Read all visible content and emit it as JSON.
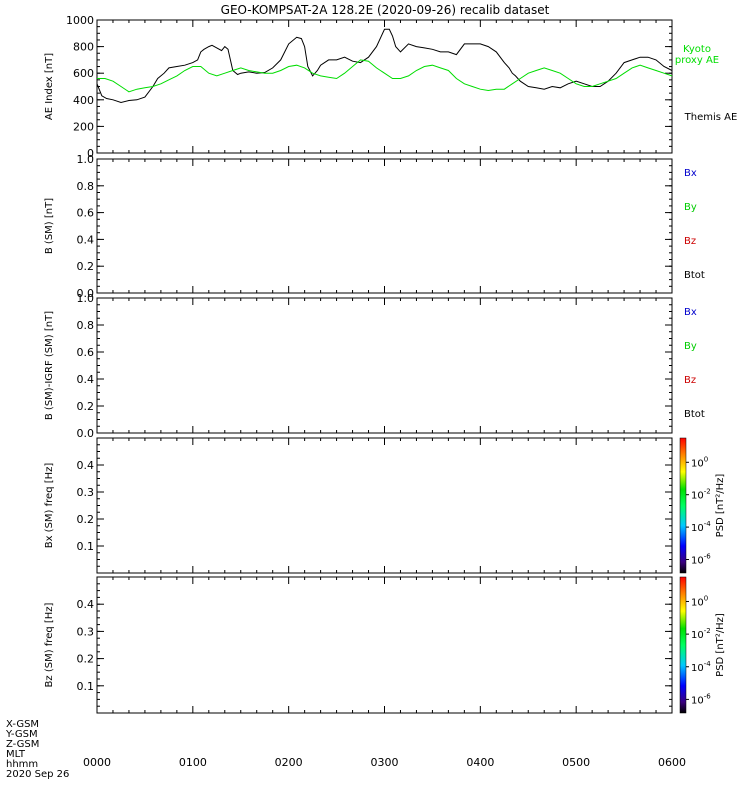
{
  "title": "GEO-KOMPSAT-2A 128.2E (2020-09-26) recalib dataset",
  "x_axis": {
    "tick_labels": [
      "0000",
      "0100",
      "0200",
      "0300",
      "0400",
      "0500",
      "0600"
    ],
    "row_labels": [
      "X-GSM",
      "Y-GSM",
      "Z-GSM",
      "MLT",
      "hhmm",
      "2020 Sep 26"
    ]
  },
  "colorbar_labels": [
    "10^0",
    "10^-2",
    "10^-4",
    "10^-6"
  ],
  "colorbar_title": "PSD [nT^2/Hz]",
  "chart_data": [
    {
      "type": "line",
      "ylabel": "AE Index [nT]",
      "ylim": [
        0,
        1000
      ],
      "yticks": [
        "0",
        "200",
        "400",
        "600",
        "800",
        "1000"
      ],
      "xlim": [
        0,
        360
      ],
      "x_unit": "minutes since 0000 UT",
      "legend": [
        {
          "label_lines": [
            "Kyoto",
            "proxy AE"
          ],
          "color": "#00dd00"
        },
        {
          "label_lines": [
            "Themis AE"
          ],
          "color": "#000000"
        }
      ],
      "series": [
        {
          "name": "Themis AE",
          "color": "#000000",
          "x": [
            0,
            3,
            6,
            10,
            15,
            20,
            25,
            30,
            35,
            38,
            42,
            45,
            50,
            55,
            60,
            63,
            65,
            67,
            70,
            72,
            75,
            78,
            80,
            82,
            85,
            88,
            90,
            95,
            100,
            105,
            110,
            115,
            120,
            125,
            128,
            130,
            132,
            135,
            138,
            140,
            145,
            150,
            155,
            160,
            165,
            170,
            175,
            180,
            183,
            185,
            187,
            190,
            195,
            200,
            205,
            210,
            215,
            220,
            225,
            230,
            235,
            240,
            245,
            250,
            255,
            258,
            260,
            262,
            265,
            270,
            275,
            280,
            285,
            290,
            295,
            300,
            305,
            310,
            315,
            320,
            325,
            330,
            335,
            340,
            345,
            350,
            355,
            360
          ],
          "y": [
            520,
            430,
            410,
            400,
            380,
            395,
            400,
            420,
            500,
            560,
            600,
            640,
            650,
            660,
            680,
            700,
            760,
            780,
            800,
            810,
            790,
            770,
            800,
            780,
            620,
            590,
            600,
            610,
            600,
            605,
            640,
            700,
            820,
            870,
            860,
            800,
            650,
            580,
            620,
            660,
            700,
            700,
            720,
            690,
            680,
            720,
            800,
            930,
            930,
            880,
            800,
            760,
            820,
            800,
            790,
            780,
            760,
            760,
            740,
            820,
            820,
            820,
            800,
            760,
            680,
            640,
            600,
            580,
            540,
            500,
            490,
            480,
            500,
            490,
            520,
            540,
            520,
            500,
            500,
            540,
            600,
            680,
            700,
            720,
            720,
            700,
            650,
            620
          ],
          "x_extra_note": ""
        },
        {
          "name": "Kyoto proxy AE",
          "color": "#00dd00",
          "x": [
            0,
            5,
            10,
            15,
            20,
            25,
            30,
            35,
            40,
            45,
            50,
            55,
            60,
            65,
            70,
            75,
            80,
            85,
            90,
            95,
            100,
            105,
            110,
            115,
            120,
            125,
            130,
            135,
            140,
            145,
            150,
            155,
            160,
            165,
            170,
            175,
            180,
            185,
            190,
            195,
            200,
            205,
            210,
            215,
            220,
            225,
            230,
            235,
            240,
            245,
            250,
            255,
            260,
            265,
            270,
            275,
            280,
            285,
            290,
            295,
            300,
            305,
            310,
            315,
            320,
            325,
            330,
            335,
            340,
            345,
            350,
            355,
            360
          ],
          "y": [
            560,
            560,
            540,
            500,
            460,
            480,
            490,
            500,
            520,
            550,
            580,
            620,
            650,
            650,
            600,
            580,
            600,
            620,
            640,
            620,
            610,
            600,
            600,
            620,
            650,
            660,
            640,
            600,
            580,
            570,
            560,
            600,
            650,
            700,
            690,
            640,
            600,
            560,
            560,
            580,
            620,
            650,
            660,
            640,
            620,
            560,
            520,
            500,
            480,
            470,
            480,
            480,
            520,
            560,
            600,
            620,
            640,
            620,
            600,
            560,
            520,
            500,
            500,
            520,
            540,
            560,
            600,
            640,
            660,
            640,
            620,
            600,
            580
          ]
        }
      ]
    },
    {
      "type": "line",
      "ylabel": "B (SM) [nT]",
      "ylim": [
        0,
        1
      ],
      "yticks": [
        "0.0",
        "0.2",
        "0.4",
        "0.6",
        "0.8",
        "1.0"
      ],
      "xlim": [
        0,
        360
      ],
      "legend": [
        {
          "label": "Bx",
          "color": "#0000cc"
        },
        {
          "label": "By",
          "color": "#00cc00"
        },
        {
          "label": "Bz",
          "color": "#cc0000"
        },
        {
          "label": "Btot",
          "color": "#000000"
        }
      ],
      "series": []
    },
    {
      "type": "line",
      "ylabel": "B (SM)-IGRF (SM) [nT]",
      "ylim": [
        0,
        1
      ],
      "yticks": [
        "0.0",
        "0.2",
        "0.4",
        "0.6",
        "0.8",
        "1.0"
      ],
      "xlim": [
        0,
        360
      ],
      "legend": [
        {
          "label": "Bx",
          "color": "#0000cc"
        },
        {
          "label": "By",
          "color": "#00cc00"
        },
        {
          "label": "Bz",
          "color": "#cc0000"
        },
        {
          "label": "Btot",
          "color": "#000000"
        }
      ],
      "series": []
    },
    {
      "type": "heatmap",
      "ylabel": "Bx (SM) freq [Hz]",
      "ylim": [
        0,
        0.5
      ],
      "yticks": [
        "0.1",
        "0.2",
        "0.3",
        "0.4"
      ],
      "xlim": [
        0,
        360
      ],
      "values": []
    },
    {
      "type": "heatmap",
      "ylabel": "Bz (SM) freq [Hz]",
      "ylim": [
        0,
        0.5
      ],
      "yticks": [
        "0.1",
        "0.2",
        "0.3",
        "0.4"
      ],
      "xlim": [
        0,
        360
      ],
      "values": []
    }
  ]
}
